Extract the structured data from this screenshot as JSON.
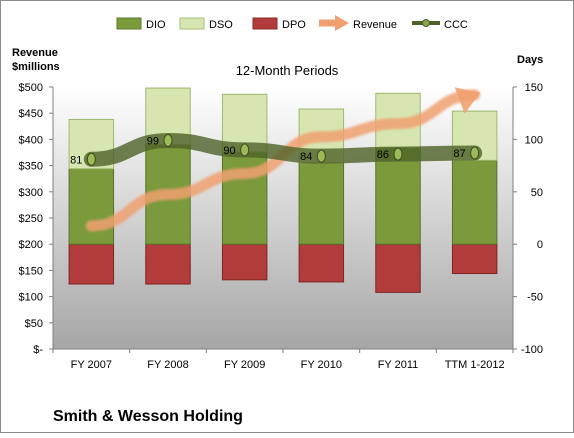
{
  "chart_data": {
    "type": "bar",
    "title": "12-Month Periods",
    "company": "Smith & Wesson Holding",
    "categories": [
      "FY 2007",
      "FY 2008",
      "FY 2009",
      "FY 2010",
      "FY 2011",
      "TTM 1-2012"
    ],
    "left_axis": {
      "title_line1": "Revenue",
      "title_line2": "$millions",
      "ylim": [
        0,
        500
      ],
      "ticks": [
        "$-",
        "$50",
        "$100",
        "$150",
        "$200",
        "$250",
        "$300",
        "$350",
        "$400",
        "$450",
        "$500"
      ]
    },
    "right_axis": {
      "title": "Days",
      "ylim": [
        -100,
        150
      ],
      "ticks": [
        "-100",
        "-50",
        "0",
        "50",
        "100",
        "150"
      ]
    },
    "series": [
      {
        "name": "DIO",
        "axis": "days",
        "values": [
          72,
          95,
          88,
          78,
          92,
          80
        ]
      },
      {
        "name": "DSO",
        "axis": "days",
        "values": [
          47,
          54,
          55,
          51,
          52,
          47
        ]
      },
      {
        "name": "DPO",
        "axis": "days",
        "values": [
          -38,
          -38,
          -34,
          -36,
          -46,
          -28
        ]
      },
      {
        "name": "Revenue",
        "axis": "revenue",
        "values": [
          235,
          295,
          335,
          405,
          430,
          485
        ]
      },
      {
        "name": "CCC",
        "axis": "days",
        "values": [
          81,
          99,
          90,
          84,
          86,
          87
        ]
      }
    ],
    "ccc_labels": [
      "81",
      "99",
      "90",
      "84",
      "86",
      "87"
    ],
    "legend": [
      "DIO",
      "DSO",
      "DPO",
      "Revenue",
      "CCC"
    ],
    "legend_position": "top",
    "colors": {
      "dio": "#7a9a3c",
      "dso": "#d7e6b0",
      "dpo": "#b23b3b",
      "revenue": "#f0a070",
      "ccc": "#4f6228",
      "plot_top": "#ffffff",
      "plot_bottom": "#a6a6a6"
    }
  }
}
